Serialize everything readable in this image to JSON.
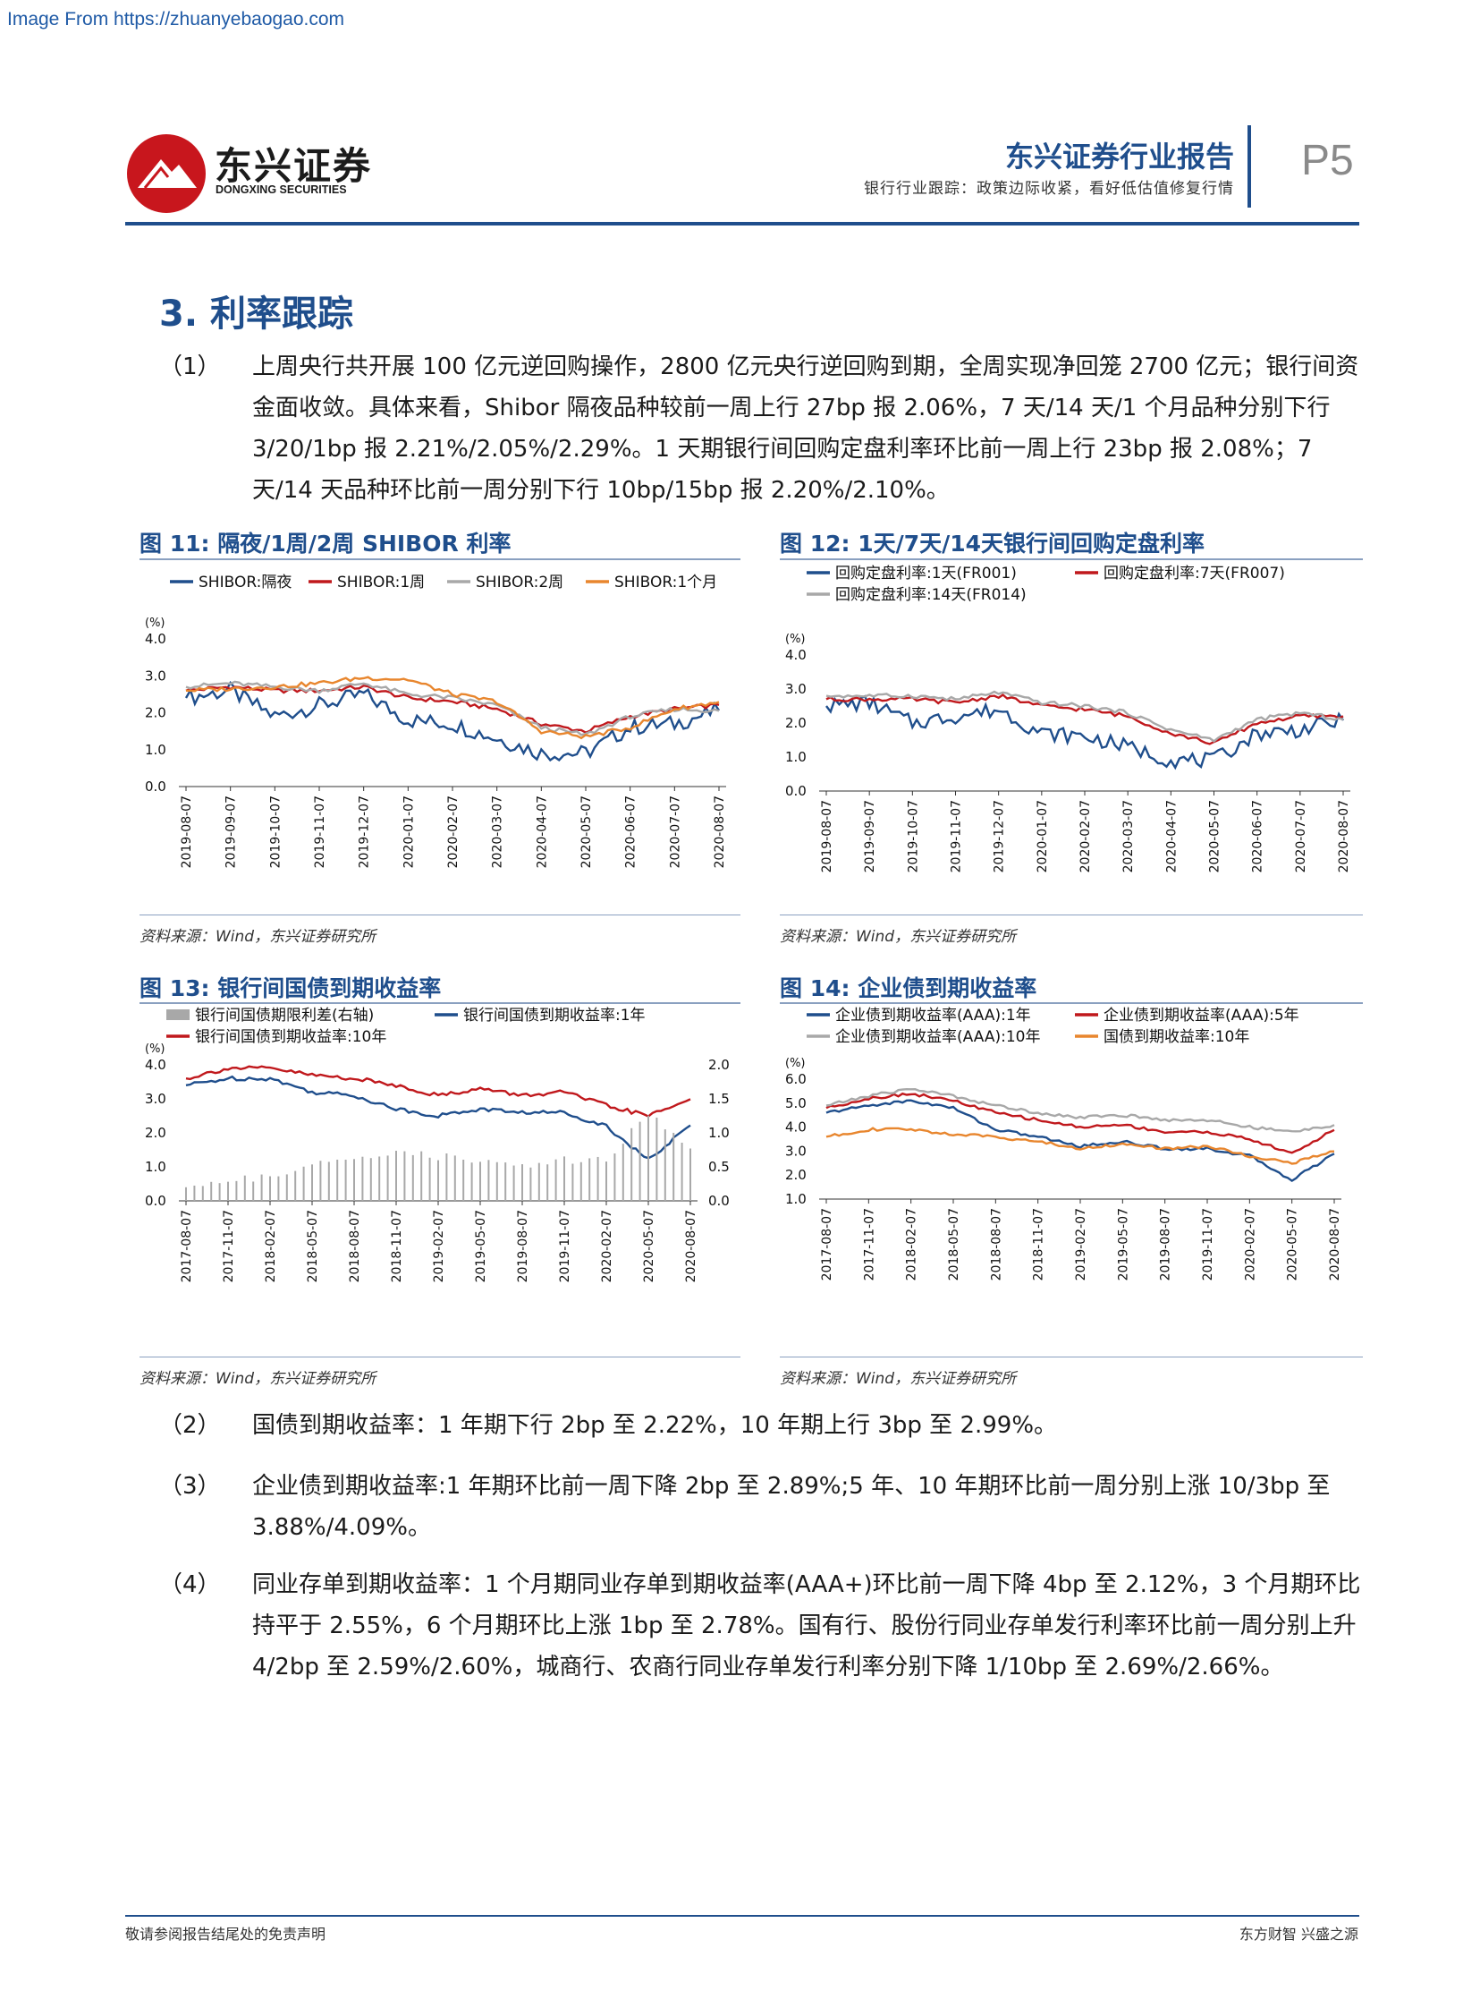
{
  "source_url": "Image From https://zhuanyebaogao.com",
  "header": {
    "logo_cn": "东兴证券",
    "logo_en": "DONGXING SECURITIES",
    "title": "东兴证券行业报告",
    "subtitle": "银行行业跟踪：政策边际收紧，看好低估值修复行情",
    "page": "P5"
  },
  "section": {
    "title": "3. 利率跟踪"
  },
  "paragraphs": [
    {
      "num": "（1）",
      "text": "上周央行共开展 100 亿元逆回购操作，2800 亿元央行逆回购到期，全周实现净回笼 2700 亿元；银行间资金面收敛。具体来看，Shibor 隔夜品种较前一周上行 27bp 报 2.06%，7 天/14 天/1 个月品种分别下行 3/20/1bp 报 2.21%/2.05%/2.29%。1 天期银行间回购定盘利率环比前一周上行 23bp 报 2.08%；7 天/14 天品种环比前一周分别下行 10bp/15bp 报 2.20%/2.10%。"
    },
    {
      "num": "（2）",
      "text": "国债到期收益率：1 年期下行 2bp 至 2.22%，10 年期上行 3bp 至 2.99%。"
    },
    {
      "num": "（3）",
      "text": "企业债到期收益率:1 年期环比前一周下降 2bp 至 2.89%;5 年、10 年期环比前一周分别上涨 10/3bp 至 3.88%/4.09%。"
    },
    {
      "num": "（4）",
      "text": "同业存单到期收益率：1 个月期同业存单到期收益率(AAA+)环比前一周下降 4bp 至 2.12%，3 个月期环比持平于 2.55%，6 个月期环比上涨 1bp 至 2.78%。国有行、股份行同业存单发行利率环比前一周分别上升 4/2bp 至 2.59%/2.60%，城商行、农商行同业存单发行利率分别下降 1/10bp 至 2.69%/2.66%。"
    }
  ],
  "figures": [
    {
      "title": "图 11: 隔夜/1周/2周 SHIBOR 利率",
      "source": "资料来源：Wind，东兴证券研究所"
    },
    {
      "title": "图 12: 1天/7天/14天银行间回购定盘利率",
      "source": "资料来源：Wind，东兴证券研究所"
    },
    {
      "title": "图 13: 银行间国债到期收益率",
      "source": "资料来源：Wind，东兴证券研究所"
    },
    {
      "title": "图 14: 企业债到期收益率",
      "source": "资料来源：Wind，东兴证券研究所"
    }
  ],
  "footer": {
    "left": "敬请参阅报告结尾处的免责声明",
    "right": "东方财智  兴盛之源"
  },
  "chart_data": [
    {
      "type": "line",
      "title": "隔夜/1周/2周 SHIBOR 利率",
      "ylabel": "(%)",
      "ylim": [
        0,
        4
      ],
      "yticks": [
        "0.0",
        "1.0",
        "2.0",
        "3.0",
        "4.0"
      ],
      "categories": [
        "2019-08-07",
        "2019-09-07",
        "2019-10-07",
        "2019-11-07",
        "2019-12-07",
        "2020-01-07",
        "2020-02-07",
        "2020-03-07",
        "2020-04-07",
        "2020-05-07",
        "2020-06-07",
        "2020-07-07",
        "2020-08-07"
      ],
      "series": [
        {
          "name": "SHIBOR:隔夜",
          "color": "#1f4e8c",
          "values": [
            2.4,
            2.6,
            1.9,
            2.2,
            2.5,
            1.8,
            1.7,
            1.3,
            0.9,
            0.9,
            1.6,
            1.7,
            2.06
          ]
        },
        {
          "name": "SHIBOR:1周",
          "color": "#c0181c",
          "values": [
            2.6,
            2.7,
            2.6,
            2.6,
            2.7,
            2.4,
            2.3,
            2.1,
            1.7,
            1.5,
            1.9,
            2.1,
            2.21
          ]
        },
        {
          "name": "SHIBOR:2周",
          "color": "#a8a8a8",
          "values": [
            2.7,
            2.8,
            2.7,
            2.6,
            2.8,
            2.5,
            2.4,
            2.2,
            1.6,
            1.4,
            1.9,
            2.1,
            2.05
          ]
        },
        {
          "name": "SHIBOR:1个月",
          "color": "#e8862e",
          "values": [
            2.6,
            2.65,
            2.7,
            2.8,
            2.95,
            2.9,
            2.5,
            2.3,
            1.5,
            1.35,
            1.6,
            2.1,
            2.29
          ]
        }
      ]
    },
    {
      "type": "line",
      "title": "1天/7天/14天银行间回购定盘利率",
      "ylabel": "(%)",
      "ylim": [
        0,
        4
      ],
      "yticks": [
        "0.0",
        "1.0",
        "2.0",
        "3.0",
        "4.0"
      ],
      "categories": [
        "2019-08-07",
        "2019-09-07",
        "2019-10-07",
        "2019-11-07",
        "2019-12-07",
        "2020-01-07",
        "2020-02-07",
        "2020-03-07",
        "2020-04-07",
        "2020-05-07",
        "2020-06-07",
        "2020-07-07",
        "2020-08-07"
      ],
      "series": [
        {
          "name": "回购定盘利率:1天(FR001)",
          "color": "#1f4e8c",
          "values": [
            2.5,
            2.6,
            2.0,
            2.2,
            2.4,
            1.7,
            1.6,
            1.3,
            0.9,
            0.9,
            1.7,
            1.8,
            2.08
          ]
        },
        {
          "name": "回购定盘利率:7天(FR007)",
          "color": "#c0181c",
          "values": [
            2.7,
            2.7,
            2.7,
            2.6,
            2.8,
            2.5,
            2.4,
            2.2,
            1.7,
            1.4,
            2.0,
            2.2,
            2.2
          ]
        },
        {
          "name": "回购定盘利率:14天(FR014)",
          "color": "#a8a8a8",
          "values": [
            2.8,
            2.8,
            2.8,
            2.7,
            2.9,
            2.6,
            2.5,
            2.3,
            1.8,
            1.5,
            2.1,
            2.3,
            2.1
          ]
        }
      ]
    },
    {
      "type": "line",
      "title": "银行间国债到期收益率",
      "ylabel": "(%)",
      "ylim": [
        0,
        4
      ],
      "y2lim": [
        0,
        2
      ],
      "yticks": [
        "0.0",
        "1.0",
        "2.0",
        "3.0",
        "4.0"
      ],
      "y2ticks": [
        "0.0",
        "0.5",
        "1.0",
        "1.5",
        "2.0"
      ],
      "categories": [
        "2017-08-07",
        "2017-11-07",
        "2018-02-07",
        "2018-05-07",
        "2018-08-07",
        "2018-11-07",
        "2019-02-07",
        "2019-05-07",
        "2019-08-07",
        "2019-11-07",
        "2020-02-07",
        "2020-05-07",
        "2020-08-07"
      ],
      "series": [
        {
          "name": "银行间国债到期收益率:1年",
          "color": "#1f4e8c",
          "values": [
            3.4,
            3.6,
            3.6,
            3.2,
            3.1,
            2.7,
            2.5,
            2.7,
            2.6,
            2.6,
            2.2,
            1.2,
            2.22
          ]
        },
        {
          "name": "银行间国债到期收益率:10年",
          "color": "#c0181c",
          "values": [
            3.6,
            3.9,
            3.9,
            3.7,
            3.6,
            3.4,
            3.1,
            3.3,
            3.1,
            3.2,
            2.8,
            2.5,
            2.99
          ]
        },
        {
          "name": "银行间国债期限利差(右轴)",
          "color": "#a8a8a8",
          "axis": "right",
          "values": [
            0.2,
            0.3,
            0.35,
            0.55,
            0.6,
            0.75,
            0.65,
            0.6,
            0.5,
            0.6,
            0.6,
            1.3,
            0.77
          ]
        }
      ]
    },
    {
      "type": "line",
      "title": "企业债到期收益率",
      "ylabel": "(%)",
      "ylim": [
        1,
        6
      ],
      "yticks": [
        "1.0",
        "2.0",
        "3.0",
        "4.0",
        "5.0",
        "6.0"
      ],
      "categories": [
        "2017-08-07",
        "2017-11-07",
        "2018-02-07",
        "2018-05-07",
        "2018-08-07",
        "2018-11-07",
        "2019-02-07",
        "2019-05-07",
        "2019-08-07",
        "2019-11-07",
        "2020-02-07",
        "2020-05-07",
        "2020-08-07"
      ],
      "series": [
        {
          "name": "企业债到期收益率(AAA):1年",
          "color": "#1f4e8c",
          "values": [
            4.6,
            4.9,
            5.1,
            4.8,
            3.9,
            3.6,
            3.2,
            3.4,
            3.1,
            3.1,
            2.8,
            1.8,
            2.89
          ]
        },
        {
          "name": "企业债到期收益率(AAA):5年",
          "color": "#c0181c",
          "values": [
            4.8,
            5.2,
            5.4,
            5.1,
            4.6,
            4.3,
            4.0,
            4.1,
            3.8,
            3.8,
            3.5,
            2.9,
            3.88
          ]
        },
        {
          "name": "企业债到期收益率(AAA):10年",
          "color": "#a8a8a8",
          "values": [
            4.9,
            5.3,
            5.6,
            5.3,
            4.9,
            4.6,
            4.4,
            4.5,
            4.3,
            4.3,
            4.0,
            3.8,
            4.09
          ]
        },
        {
          "name": "国债到期收益率:10年",
          "color": "#e8862e",
          "values": [
            3.6,
            3.9,
            3.9,
            3.7,
            3.6,
            3.4,
            3.1,
            3.3,
            3.1,
            3.2,
            2.8,
            2.5,
            2.99
          ]
        }
      ]
    }
  ]
}
